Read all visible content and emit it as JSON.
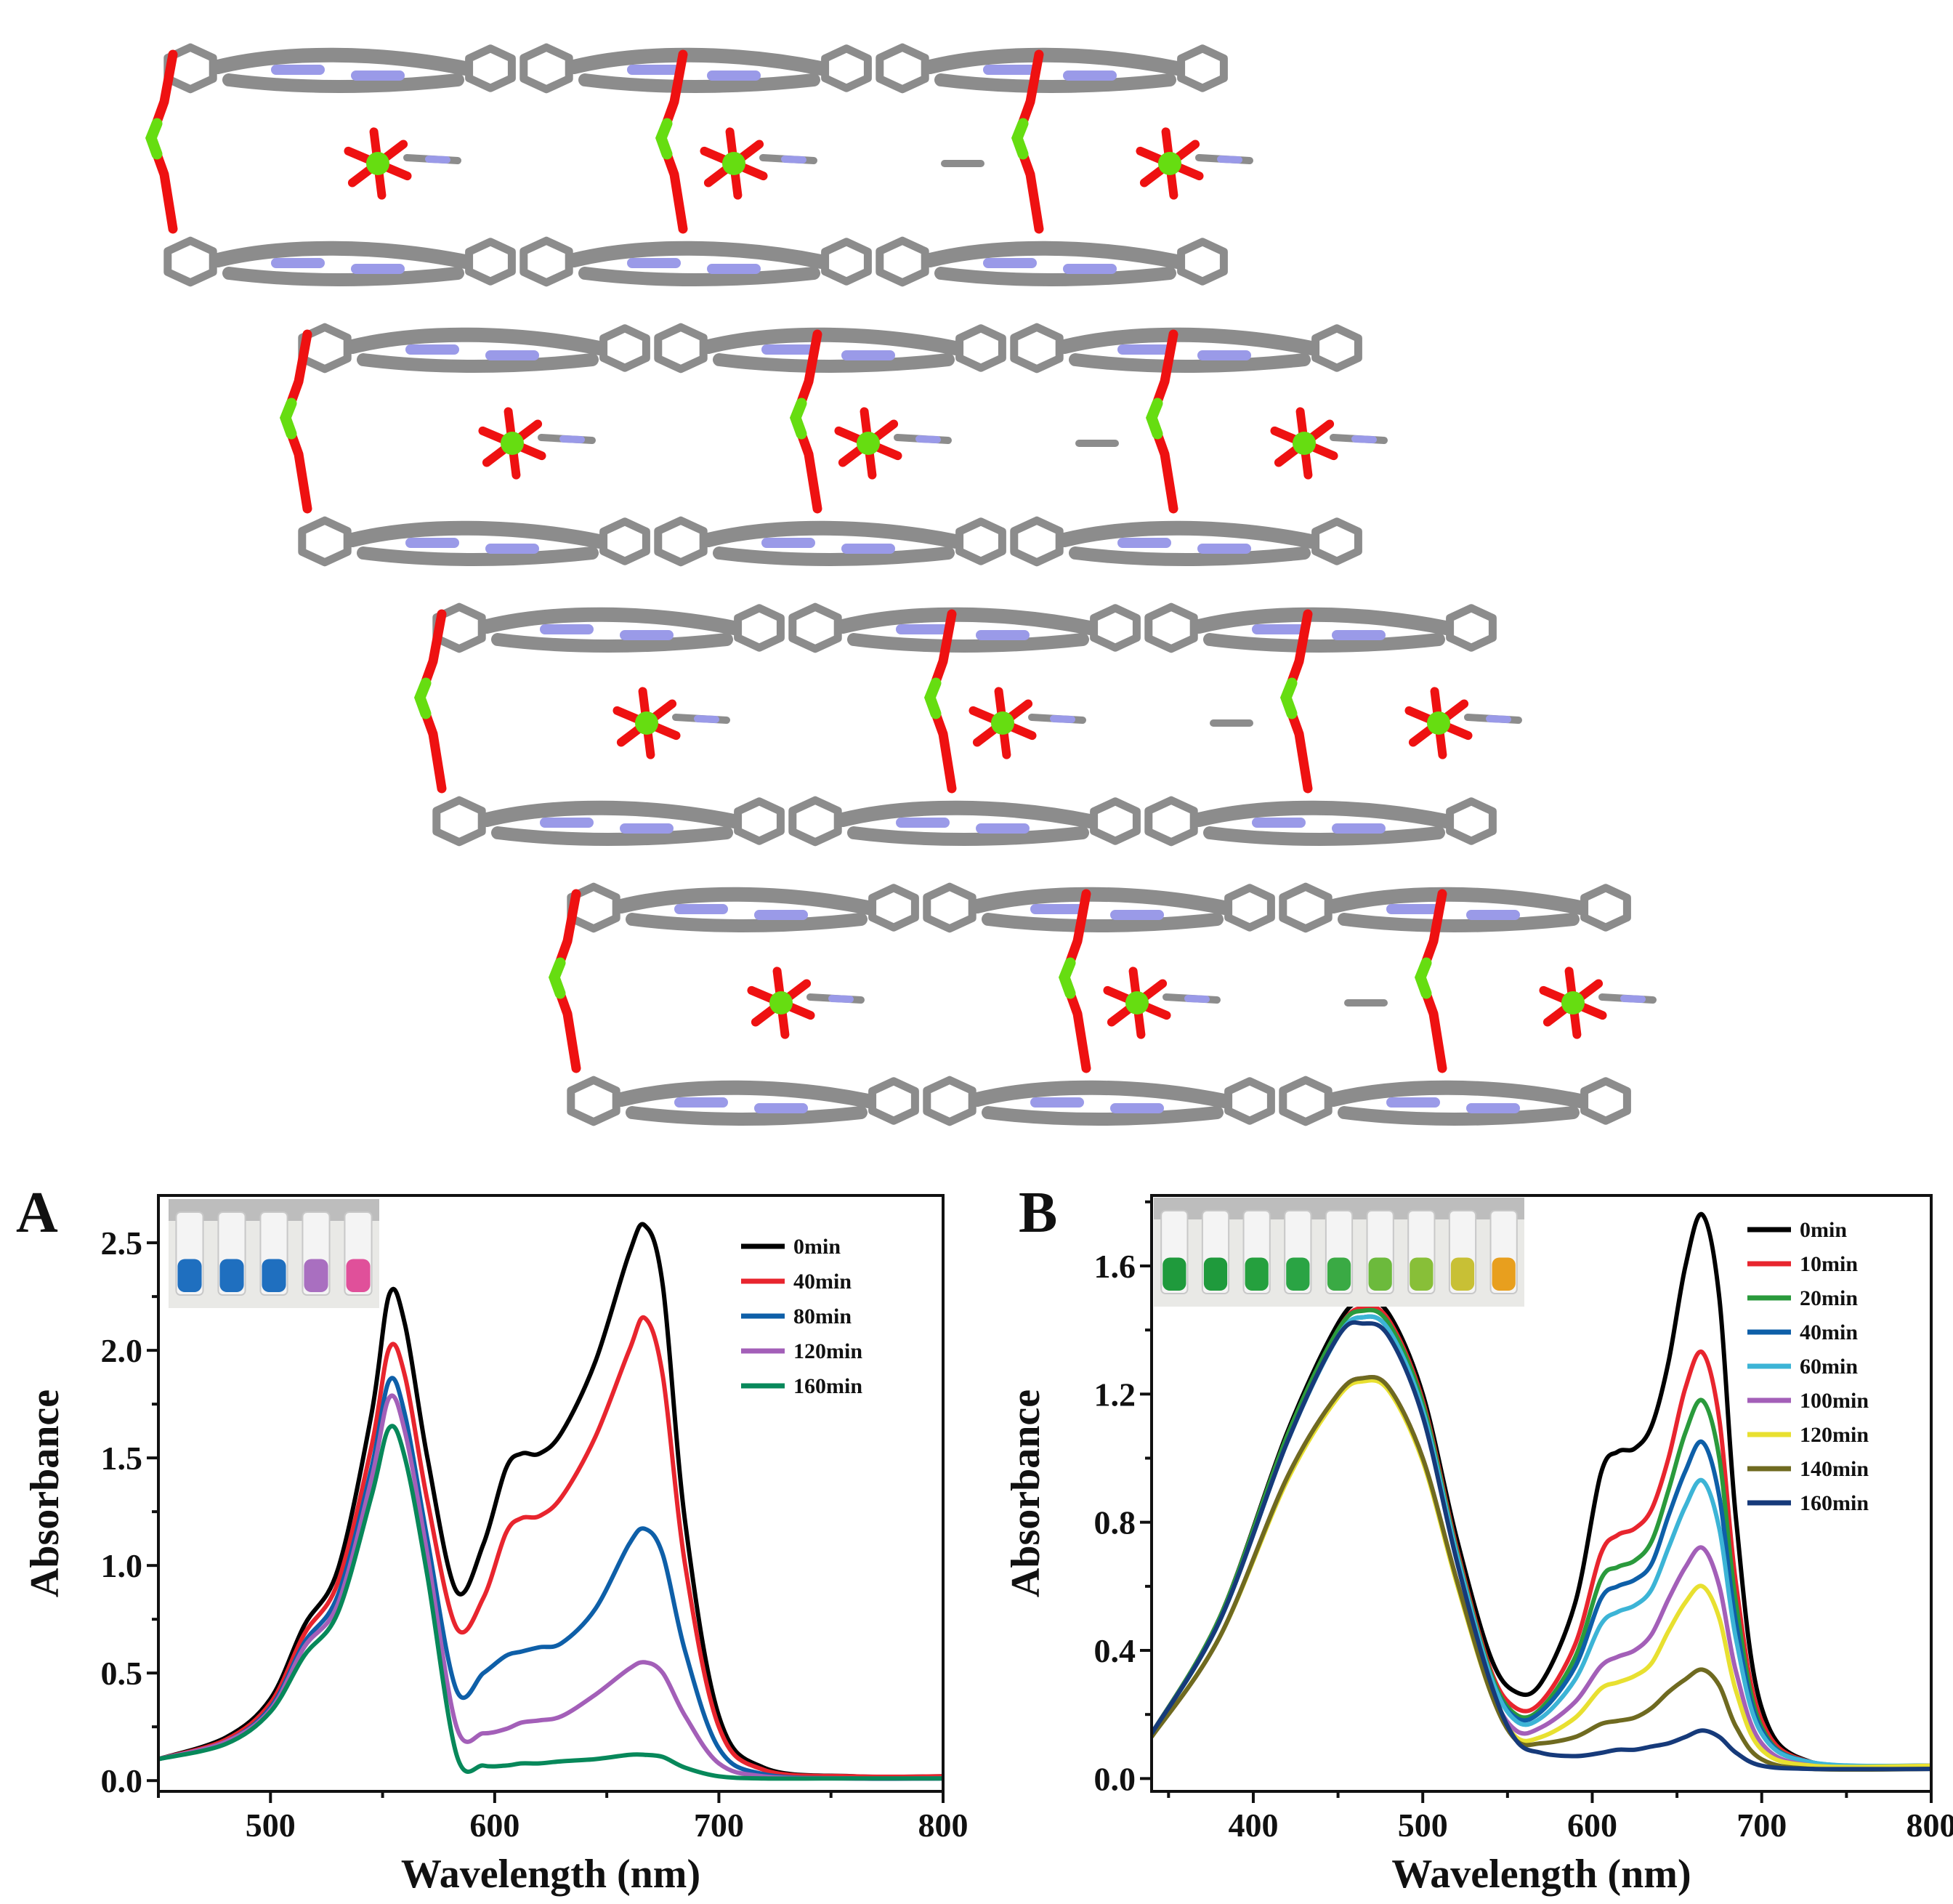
{
  "colors": {
    "carbon": "#8c8c8c",
    "nitrogen": "#9a9ae8",
    "oxygen": "#ee1111",
    "metal": "#66dd11"
  },
  "crystal": {
    "rows": 4
  },
  "chart_data": [
    {
      "type": "line",
      "panel": "A",
      "xlabel": "Wavelength (nm)",
      "ylabel": "Absorbance",
      "xlim": [
        450,
        800
      ],
      "ylim": [
        -0.05,
        2.72
      ],
      "xticks": [
        500,
        600,
        700,
        800
      ],
      "yticks": [
        0.0,
        0.5,
        1.0,
        1.5,
        2.0,
        2.5
      ],
      "ytick_labels": [
        "0.0",
        "0.5",
        "1.0",
        "1.5",
        "2.0",
        "2.5"
      ],
      "legend_position": "top-right",
      "inset_vials": [
        "#1f6fbf",
        "#1f6fbf",
        "#1f6fbf",
        "#a96fc0",
        "#e0509a"
      ],
      "series": [
        {
          "name": "0min",
          "color": "#000000",
          "x": [
            450,
            480,
            500,
            515,
            530,
            545,
            553,
            560,
            570,
            583,
            595,
            605,
            612,
            620,
            630,
            645,
            660,
            667,
            675,
            685,
            700,
            720,
            760,
            800
          ],
          "y": [
            0.1,
            0.2,
            0.38,
            0.72,
            0.98,
            1.7,
            2.26,
            2.12,
            1.5,
            0.88,
            1.1,
            1.45,
            1.52,
            1.52,
            1.62,
            1.95,
            2.45,
            2.58,
            2.3,
            1.2,
            0.3,
            0.06,
            0.02,
            0.02
          ]
        },
        {
          "name": "40min",
          "color": "#e8252e",
          "x": [
            450,
            480,
            500,
            515,
            530,
            545,
            553,
            560,
            570,
            583,
            595,
            605,
            612,
            620,
            630,
            645,
            660,
            667,
            675,
            685,
            700,
            720,
            760,
            800
          ],
          "y": [
            0.1,
            0.19,
            0.36,
            0.68,
            0.92,
            1.55,
            2.01,
            1.88,
            1.3,
            0.71,
            0.85,
            1.15,
            1.22,
            1.23,
            1.32,
            1.6,
            2.0,
            2.15,
            1.88,
            1.0,
            0.25,
            0.05,
            0.02,
            0.02
          ]
        },
        {
          "name": "80min",
          "color": "#0e5fa8",
          "x": [
            450,
            480,
            500,
            515,
            530,
            545,
            553,
            560,
            570,
            583,
            595,
            605,
            612,
            620,
            630,
            645,
            660,
            667,
            675,
            685,
            700,
            720,
            760,
            800
          ],
          "y": [
            0.1,
            0.18,
            0.34,
            0.64,
            0.86,
            1.45,
            1.86,
            1.7,
            1.12,
            0.42,
            0.5,
            0.58,
            0.6,
            0.62,
            0.64,
            0.8,
            1.1,
            1.17,
            1.05,
            0.6,
            0.15,
            0.03,
            0.01,
            0.01
          ]
        },
        {
          "name": "120min",
          "color": "#a35fb8",
          "x": [
            450,
            480,
            500,
            515,
            530,
            545,
            553,
            560,
            570,
            583,
            595,
            605,
            612,
            620,
            630,
            645,
            660,
            667,
            675,
            685,
            700,
            720,
            760,
            800
          ],
          "y": [
            0.1,
            0.18,
            0.33,
            0.62,
            0.82,
            1.4,
            1.78,
            1.62,
            1.05,
            0.25,
            0.22,
            0.24,
            0.27,
            0.28,
            0.3,
            0.4,
            0.52,
            0.55,
            0.5,
            0.3,
            0.08,
            0.02,
            0.01,
            0.01
          ]
        },
        {
          "name": "160min",
          "color": "#07885a",
          "x": [
            450,
            480,
            500,
            515,
            530,
            545,
            553,
            560,
            570,
            583,
            595,
            605,
            612,
            620,
            630,
            645,
            660,
            667,
            675,
            685,
            700,
            720,
            760,
            800
          ],
          "y": [
            0.1,
            0.17,
            0.32,
            0.58,
            0.78,
            1.32,
            1.64,
            1.5,
            0.95,
            0.12,
            0.07,
            0.07,
            0.08,
            0.08,
            0.09,
            0.1,
            0.12,
            0.12,
            0.11,
            0.06,
            0.02,
            0.01,
            0.01,
            0.01
          ]
        }
      ]
    },
    {
      "type": "line",
      "panel": "B",
      "xlabel": "Wavelength (nm)",
      "ylabel": "Absorbance",
      "xlim": [
        340,
        800
      ],
      "ylim": [
        -0.04,
        1.82
      ],
      "xticks": [
        400,
        500,
        600,
        700,
        800
      ],
      "yticks": [
        0.0,
        0.4,
        0.8,
        1.2,
        1.6
      ],
      "ytick_labels": [
        "0.0",
        "0.4",
        "0.8",
        "1.2",
        "1.6"
      ],
      "legend_position": "top-right",
      "inset_vials": [
        "#1f9a3c",
        "#1f9a3c",
        "#25a03e",
        "#2aa444",
        "#3aaa44",
        "#6cba3c",
        "#88bf38",
        "#c8c035",
        "#e89f1e"
      ],
      "series": [
        {
          "name": "0min",
          "color": "#000000",
          "x": [
            340,
            380,
            420,
            450,
            465,
            480,
            500,
            520,
            540,
            555,
            570,
            590,
            605,
            615,
            625,
            635,
            645,
            655,
            665,
            675,
            685,
            700,
            730,
            800
          ],
          "y": [
            0.14,
            0.5,
            1.08,
            1.42,
            1.49,
            1.45,
            1.2,
            0.75,
            0.38,
            0.27,
            0.3,
            0.55,
            0.95,
            1.02,
            1.03,
            1.1,
            1.3,
            1.6,
            1.76,
            1.5,
            0.8,
            0.22,
            0.05,
            0.04
          ]
        },
        {
          "name": "10min",
          "color": "#e8252e",
          "x": [
            340,
            380,
            420,
            450,
            465,
            480,
            500,
            520,
            540,
            555,
            570,
            590,
            605,
            615,
            625,
            635,
            645,
            655,
            665,
            675,
            685,
            700,
            730,
            800
          ],
          "y": [
            0.14,
            0.5,
            1.07,
            1.4,
            1.47,
            1.43,
            1.18,
            0.72,
            0.34,
            0.22,
            0.24,
            0.42,
            0.7,
            0.76,
            0.78,
            0.84,
            1.0,
            1.22,
            1.33,
            1.12,
            0.6,
            0.18,
            0.05,
            0.04
          ]
        },
        {
          "name": "20min",
          "color": "#2a9a3c",
          "x": [
            340,
            380,
            420,
            450,
            465,
            480,
            500,
            520,
            540,
            555,
            570,
            590,
            605,
            615,
            625,
            635,
            645,
            655,
            665,
            675,
            685,
            700,
            730,
            800
          ],
          "y": [
            0.14,
            0.5,
            1.07,
            1.4,
            1.46,
            1.42,
            1.17,
            0.71,
            0.33,
            0.2,
            0.22,
            0.38,
            0.62,
            0.66,
            0.68,
            0.74,
            0.9,
            1.08,
            1.18,
            1.0,
            0.54,
            0.16,
            0.05,
            0.04
          ]
        },
        {
          "name": "40min",
          "color": "#0e5fa8",
          "x": [
            340,
            380,
            420,
            450,
            465,
            480,
            500,
            520,
            540,
            555,
            570,
            590,
            605,
            615,
            625,
            635,
            645,
            655,
            665,
            675,
            685,
            700,
            730,
            800
          ],
          "y": [
            0.14,
            0.49,
            1.05,
            1.38,
            1.44,
            1.4,
            1.15,
            0.7,
            0.32,
            0.19,
            0.21,
            0.35,
            0.56,
            0.6,
            0.62,
            0.67,
            0.82,
            0.96,
            1.05,
            0.88,
            0.48,
            0.15,
            0.05,
            0.04
          ]
        },
        {
          "name": "60min",
          "color": "#3cb4d6",
          "x": [
            340,
            380,
            420,
            450,
            465,
            480,
            500,
            520,
            540,
            555,
            570,
            590,
            605,
            615,
            625,
            635,
            645,
            655,
            665,
            675,
            685,
            700,
            730,
            800
          ],
          "y": [
            0.14,
            0.49,
            1.05,
            1.38,
            1.44,
            1.4,
            1.15,
            0.7,
            0.32,
            0.18,
            0.19,
            0.31,
            0.48,
            0.52,
            0.54,
            0.59,
            0.72,
            0.85,
            0.93,
            0.78,
            0.43,
            0.14,
            0.05,
            0.04
          ]
        },
        {
          "name": "100min",
          "color": "#a35fb8",
          "x": [
            340,
            380,
            420,
            450,
            465,
            480,
            500,
            520,
            540,
            555,
            570,
            590,
            605,
            615,
            625,
            635,
            645,
            655,
            665,
            675,
            685,
            700,
            730,
            800
          ],
          "y": [
            0.13,
            0.44,
            0.94,
            1.2,
            1.25,
            1.22,
            1.0,
            0.62,
            0.28,
            0.15,
            0.16,
            0.24,
            0.35,
            0.38,
            0.4,
            0.45,
            0.56,
            0.66,
            0.72,
            0.6,
            0.33,
            0.11,
            0.04,
            0.04
          ]
        },
        {
          "name": "120min",
          "color": "#e8e030",
          "x": [
            340,
            380,
            420,
            450,
            465,
            480,
            500,
            520,
            540,
            555,
            570,
            590,
            605,
            615,
            625,
            635,
            645,
            655,
            665,
            675,
            685,
            700,
            730,
            800
          ],
          "y": [
            0.13,
            0.44,
            0.93,
            1.19,
            1.24,
            1.21,
            0.99,
            0.61,
            0.27,
            0.13,
            0.13,
            0.19,
            0.28,
            0.3,
            0.32,
            0.36,
            0.46,
            0.55,
            0.6,
            0.5,
            0.27,
            0.09,
            0.04,
            0.04
          ]
        },
        {
          "name": "140min",
          "color": "#6f6a20",
          "x": [
            340,
            380,
            420,
            450,
            465,
            480,
            500,
            520,
            540,
            555,
            570,
            590,
            605,
            615,
            625,
            635,
            645,
            655,
            665,
            675,
            685,
            700,
            730,
            800
          ],
          "y": [
            0.13,
            0.44,
            0.94,
            1.2,
            1.25,
            1.22,
            1.0,
            0.62,
            0.27,
            0.12,
            0.11,
            0.13,
            0.17,
            0.18,
            0.19,
            0.22,
            0.27,
            0.31,
            0.34,
            0.29,
            0.16,
            0.06,
            0.03,
            0.03
          ]
        },
        {
          "name": "160min",
          "color": "#163a7a",
          "x": [
            340,
            380,
            420,
            450,
            465,
            480,
            500,
            520,
            540,
            555,
            570,
            590,
            605,
            615,
            625,
            635,
            645,
            655,
            665,
            675,
            685,
            700,
            730,
            800
          ],
          "y": [
            0.14,
            0.49,
            1.05,
            1.38,
            1.42,
            1.38,
            1.13,
            0.68,
            0.3,
            0.12,
            0.08,
            0.07,
            0.08,
            0.09,
            0.09,
            0.1,
            0.11,
            0.13,
            0.15,
            0.13,
            0.08,
            0.04,
            0.03,
            0.03
          ]
        }
      ]
    }
  ]
}
